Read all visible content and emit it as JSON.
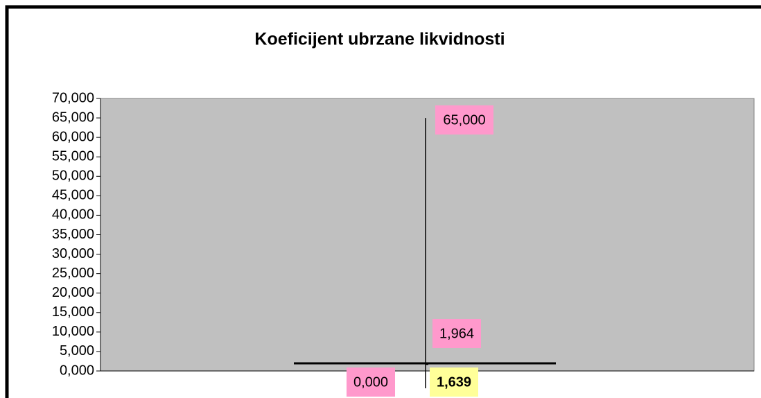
{
  "chart_data": {
    "type": "highlow",
    "title": "Koeficijent ubrzane likvidnosti",
    "categories": [
      null
    ],
    "points": [
      {
        "value": 65,
        "label": "65,000"
      },
      {
        "value": 1.964,
        "label": "1,964"
      },
      {
        "value": 0,
        "label": "0,000"
      },
      {
        "value": 1.639,
        "label": "1,639"
      }
    ],
    "ylim": [
      0,
      70
    ],
    "yticks": [
      {
        "value": 0,
        "label": "0,000"
      },
      {
        "value": 5,
        "label": "5,000"
      },
      {
        "value": 10,
        "label": "10,000"
      },
      {
        "value": 15,
        "label": "15,000"
      },
      {
        "value": 20,
        "label": "20,000"
      },
      {
        "value": 25,
        "label": "25,000"
      },
      {
        "value": 30,
        "label": "30,000"
      },
      {
        "value": 35,
        "label": "35,000"
      },
      {
        "value": 40,
        "label": "40,000"
      },
      {
        "value": 45,
        "label": "45,000"
      },
      {
        "value": 50,
        "label": "50,000"
      },
      {
        "value": 55,
        "label": "55,000"
      },
      {
        "value": 60,
        "label": "60,000"
      },
      {
        "value": 65,
        "label": "65,000"
      },
      {
        "value": 70,
        "label": "70,000"
      }
    ],
    "plot_color": "#c0c0c0",
    "label_colors": [
      "#ff99cc",
      "#ff99cc",
      "#ff99cc",
      "#ffff99"
    ]
  }
}
